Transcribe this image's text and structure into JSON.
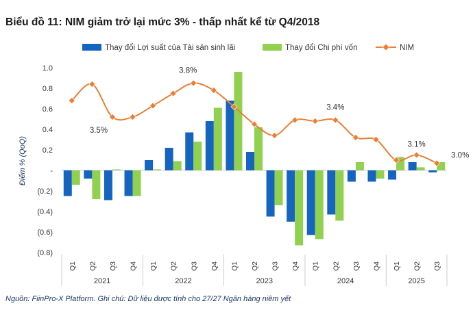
{
  "chart_data": {
    "type": "bar",
    "title": "Biểu đồ 11: NIM giảm trở lại mức 3% - thấp nhất kể từ Q4/2018",
    "ylabel": "Điểm % (QoQ)",
    "ylim": [
      -0.8,
      1.0
    ],
    "ytick_values": [
      1.0,
      0.8,
      0.6,
      0.4,
      0.2,
      0,
      -0.2,
      -0.4,
      -0.6,
      -0.8
    ],
    "ytick_labels": [
      "1.0",
      "0.8",
      "0.6",
      "0.4",
      "0.2",
      "-",
      "(0.2)",
      "(0.4)",
      "(0.6)",
      "(0.8)"
    ],
    "categories": [
      "Q1",
      "Q2",
      "Q3",
      "Q4",
      "Q1",
      "Q2",
      "Q3",
      "Q4",
      "Q1",
      "Q2",
      "Q3",
      "Q4",
      "Q1",
      "Q2",
      "Q3",
      "Q4",
      "Q1",
      "Q2",
      "Q3"
    ],
    "years": [
      {
        "label": "2021",
        "span": 4
      },
      {
        "label": "2022",
        "span": 4
      },
      {
        "label": "2023",
        "span": 4
      },
      {
        "label": "2024",
        "span": 4
      },
      {
        "label": "2025",
        "span": 3
      }
    ],
    "series": [
      {
        "name": "Thay đổi Lợi suất của Tài sản sinh lãi",
        "type": "bar",
        "color": "#1565c0",
        "values": [
          -0.25,
          -0.08,
          -0.29,
          -0.25,
          0.1,
          0.22,
          0.37,
          0.48,
          0.68,
          0.18,
          -0.45,
          -0.5,
          -0.63,
          -0.43,
          -0.11,
          -0.11,
          -0.09,
          0.08,
          -0.02
        ]
      },
      {
        "name": "Thay đổi Chi phí vốn",
        "type": "bar",
        "color": "#92d050",
        "values": [
          -0.14,
          -0.28,
          0.01,
          -0.25,
          0.01,
          0.09,
          0.28,
          0.61,
          0.96,
          0.42,
          -0.34,
          -0.73,
          -0.67,
          -0.49,
          0.08,
          -0.08,
          0.13,
          0.03,
          0.08
        ]
      },
      {
        "name": "NIM",
        "type": "line",
        "color": "#ed7d31",
        "values": [
          0.68,
          0.84,
          0.52,
          0.52,
          0.63,
          0.75,
          0.85,
          0.78,
          0.62,
          0.45,
          0.34,
          0.49,
          0.48,
          0.49,
          0.32,
          0.3,
          0.1,
          0.15,
          0.07
        ]
      }
    ],
    "annotations": [
      {
        "text": "3.5%",
        "index": 2
      },
      {
        "text": "3.8%",
        "index": 6
      },
      {
        "text": "3.4%",
        "index": 13
      },
      {
        "text": "3.1%",
        "index": 17
      },
      {
        "text": "3.0%",
        "index": 18
      }
    ]
  },
  "source_note": "Nguồn: FiinPro-X Platform. Ghi chú: Dữ liệu được tính cho 27/27 Ngân hàng niêm yết"
}
